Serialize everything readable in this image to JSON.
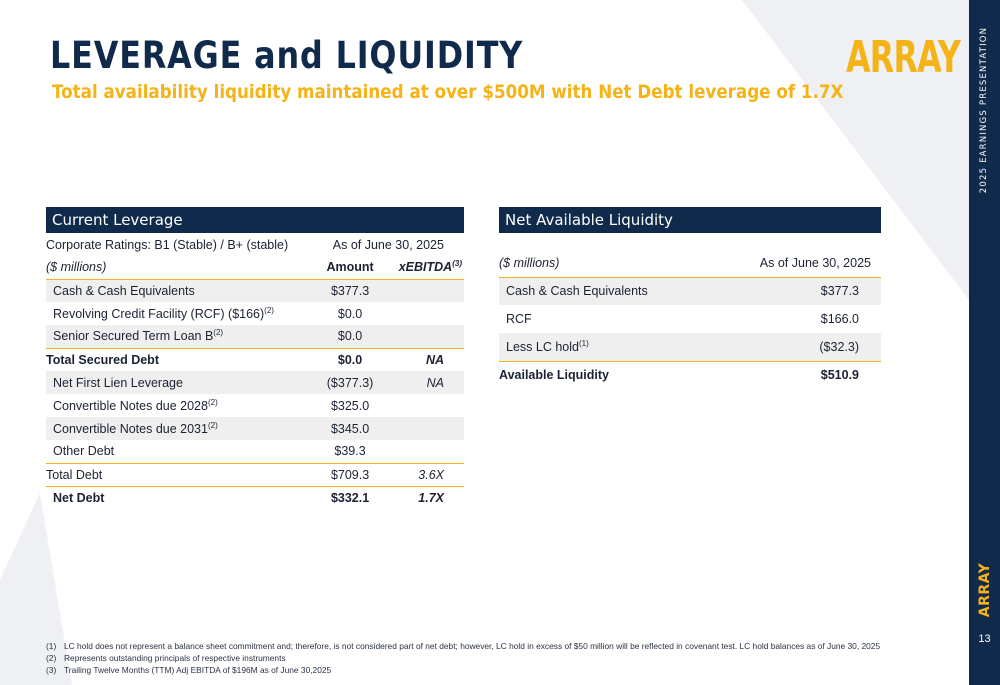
{
  "title": "LEVERAGE and LIQUIDITY",
  "subtitle": "Total availability liquidity maintained at over $500M with Net Debt leverage of 1.7X",
  "logo": "ARRAY",
  "sidebar": {
    "presentation_label": "2025 EARNINGS PRESENTATION",
    "logo": "ARRAY",
    "page_number": "13"
  },
  "colors": {
    "navy": "#0f2a4a",
    "gold": "#f5b317",
    "shade": "#efefef"
  },
  "leverage": {
    "header": "Current Leverage",
    "ratings_label": "Corporate Ratings: B1 (Stable) / B+ (stable)",
    "as_of": "As of June 30, 2025",
    "units_label": "($ millions)",
    "col_amount": "Amount",
    "col_ebitda": "xEBITDA",
    "col_ebitda_note": "(3)",
    "rows": [
      {
        "label": "Cash & Cash Equivalents",
        "note": "",
        "amount": "$377.3",
        "x": ""
      },
      {
        "label": "Revolving Credit Facility (RCF) ($166)",
        "note": "(2)",
        "amount": "$0.0",
        "x": ""
      },
      {
        "label": "Senior Secured Term Loan B",
        "note": "(2)",
        "amount": "$0.0",
        "x": ""
      },
      {
        "label": "Total Secured Debt",
        "note": "",
        "amount": "$0.0",
        "x": "NA"
      },
      {
        "label": "Net First Lien Leverage",
        "note": "",
        "amount": "($377.3)",
        "x": "NA"
      },
      {
        "label": "Convertible Notes due 2028",
        "note": "(2)",
        "amount": "$325.0",
        "x": ""
      },
      {
        "label": "Convertible Notes due 2031",
        "note": "(2)",
        "amount": "$345.0",
        "x": ""
      },
      {
        "label": "Other Debt",
        "note": "",
        "amount": "$39.3",
        "x": ""
      },
      {
        "label": "Total Debt",
        "note": "",
        "amount": "$709.3",
        "x": "3.6X"
      },
      {
        "label": "Net Debt",
        "note": "",
        "amount": "$332.1",
        "x": "1.7X"
      }
    ]
  },
  "liquidity": {
    "header": "Net Available Liquidity",
    "units_label": "($ millions)",
    "as_of": "As of June 30, 2025",
    "rows": [
      {
        "label": "Cash & Cash Equivalents",
        "note": "",
        "amount": "$377.3"
      },
      {
        "label": "RCF",
        "note": "",
        "amount": "$166.0"
      },
      {
        "label": "Less LC hold",
        "note": "(1)",
        "amount": "($32.3)"
      },
      {
        "label": "Available Liquidity",
        "note": "",
        "amount": "$510.9"
      }
    ]
  },
  "footnotes": [
    {
      "num": "(1)",
      "text": "LC hold does not represent a balance sheet commitment and; therefore, is not considered part of net debt; however, LC hold in excess of $50 million will be reflected in covenant test. LC hold balances as of June 30, 2025"
    },
    {
      "num": "(2)",
      "text": "Represents outstanding principals of respective instruments"
    },
    {
      "num": "(3)",
      "text": "Trailing Twelve Months (TTM) Adj EBITDA of $196M as of June 30,2025"
    }
  ]
}
